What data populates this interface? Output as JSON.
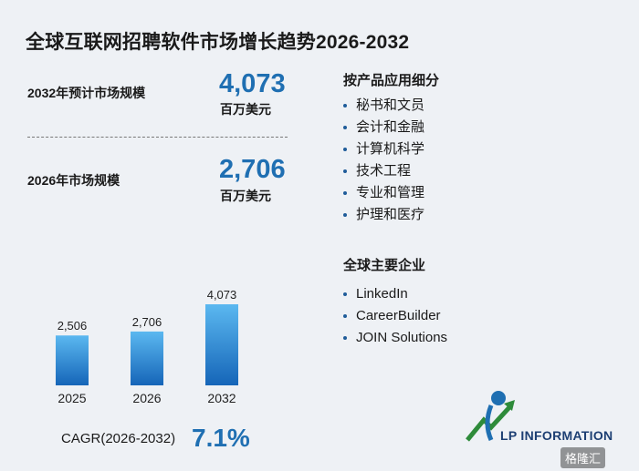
{
  "title": "全球互联网招聘软件市场增长趋势2026-2032",
  "stats": [
    {
      "label": "2032年预计市场规模",
      "value": "4,073",
      "unit": "百万美元"
    },
    {
      "label": "2026年市场规模",
      "value": "2,706",
      "unit": "百万美元"
    }
  ],
  "segments": {
    "heading": "按产品应用细分",
    "items": [
      "秘书和文员",
      "会计和金融",
      "计算机科学",
      "技术工程",
      "专业和管理",
      "护理和医疗"
    ]
  },
  "companies": {
    "heading": "全球主要企业",
    "items": [
      "LinkedIn",
      "CareerBuilder",
      "JOIN Solutions"
    ]
  },
  "cagr": {
    "label": "CAGR(2026-2032)",
    "value": "7.1%"
  },
  "logo": {
    "text": "LP INFORMATION"
  },
  "brand": {
    "text": "格隆汇"
  },
  "colors": {
    "accent": "#1f6fb2",
    "bar_top": "#5bb8f0",
    "bar_bottom": "#1565b8"
  },
  "chart_data": {
    "type": "bar",
    "categories": [
      "2025",
      "2026",
      "2032"
    ],
    "values": [
      2506,
      2706,
      4073
    ],
    "data_labels": [
      "2,506",
      "2,706",
      "4,073"
    ],
    "title": "",
    "xlabel": "",
    "ylabel": "",
    "grid": false,
    "legend": "none"
  }
}
